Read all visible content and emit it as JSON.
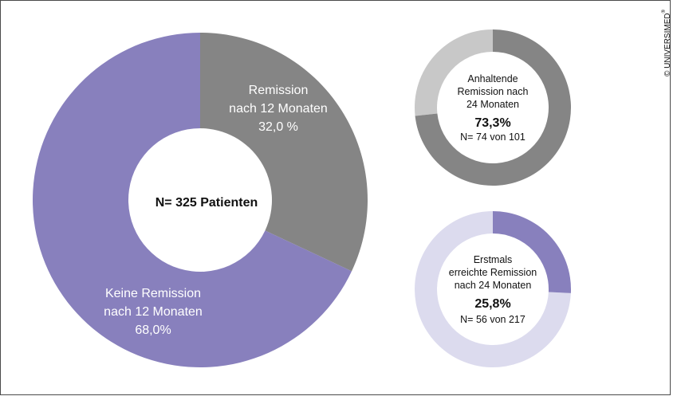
{
  "copyright": "© UNIVERSIMED",
  "copyright_mark": "®",
  "colors": {
    "remission": "#858585",
    "no_remission": "#8880bd",
    "sustained_rest": "#c8c8c8",
    "first_rest": "#dcdbee"
  },
  "chart_data": [
    {
      "type": "pie",
      "center_label": "N= 325 Patienten",
      "slices": [
        {
          "key": "remission",
          "value": 32.0,
          "label_lines": [
            "Remission",
            "nach 12 Monaten",
            "32,0 %"
          ],
          "color": "#858585"
        },
        {
          "key": "no_remission",
          "value": 68.0,
          "label_lines": [
            "Keine Remission",
            "nach 12 Monaten",
            "68,0%"
          ],
          "color": "#8880bd"
        }
      ]
    },
    {
      "type": "pie",
      "value": 73.3,
      "center_lines": [
        "Anhaltende",
        "Remission nach",
        "24 Monaten"
      ],
      "percent_label": "73,3%",
      "n_label": "N= 74 von 101",
      "color": "#858585",
      "rest_color": "#c8c8c8"
    },
    {
      "type": "pie",
      "value": 25.8,
      "center_lines": [
        "Erstmals",
        "erreichte Remission",
        "nach 24 Monaten"
      ],
      "percent_label": "25,8%",
      "n_label": "N= 56 von 217",
      "color": "#8880bd",
      "rest_color": "#dcdbee"
    }
  ]
}
